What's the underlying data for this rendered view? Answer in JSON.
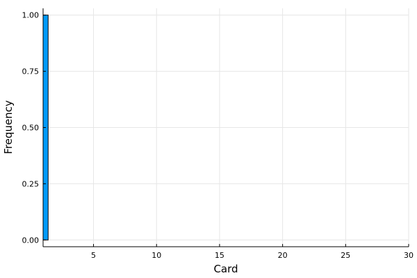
{
  "chart_data": {
    "type": "bar",
    "title": "",
    "xlabel": "Card",
    "ylabel": "Frequency",
    "xlim": [
      1,
      30
    ],
    "ylim": [
      -0.03,
      1.03
    ],
    "xticks": [
      5,
      10,
      15,
      20,
      25,
      30
    ],
    "xtick_labels": [
      "5",
      "10",
      "15",
      "20",
      "25",
      "30"
    ],
    "yticks": [
      0,
      0.25,
      0.5,
      0.75,
      1.0
    ],
    "ytick_labels": [
      "0.00",
      "0.25",
      "0.50",
      "0.75",
      "1.00"
    ],
    "grid": true,
    "legend": "none",
    "bins": [
      {
        "x_start": 1,
        "x_end": 1.4,
        "value": 1.0
      }
    ],
    "colors": {
      "bar": "#009af9",
      "grid": "#e6e6e6",
      "axis": "#000000"
    }
  }
}
